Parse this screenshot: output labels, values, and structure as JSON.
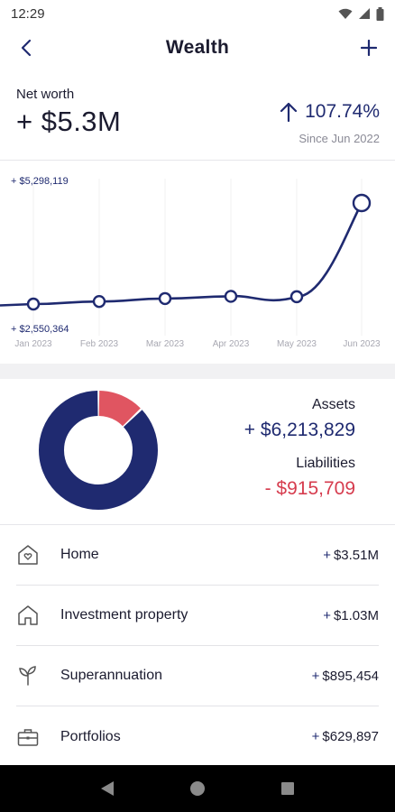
{
  "status_bar": {
    "time": "12:29"
  },
  "header": {
    "title": "Wealth",
    "back_icon": "chevron-left-icon",
    "add_icon": "plus-icon"
  },
  "summary": {
    "net_worth_label": "Net worth",
    "net_worth_value": "+ $5.3M",
    "change_percent": "107.74%",
    "change_direction": "up",
    "since_label": "Since Jun 2022"
  },
  "chart_data": {
    "type": "line",
    "x": [
      "Jan 2023",
      "Feb 2023",
      "Mar 2023",
      "Apr 2023",
      "May 2023",
      "Jun 2023"
    ],
    "series": [
      {
        "values": [
          2550364,
          2620000,
          2700000,
          2760000,
          2750000,
          5298119
        ]
      }
    ],
    "max_label": "+ $5,298,119",
    "min_label": "+ $2,550,364",
    "ylim": [
      2550364,
      5298119
    ],
    "grid": "vertical",
    "line_color": "#1f2a70"
  },
  "breakdown": {
    "assets_label": "Assets",
    "assets_value": "+ $6,213,829",
    "liabilities_label": "Liabilities",
    "liabilities_value": "-  $915,709",
    "assets_fraction": 0.8716,
    "liabilities_fraction": 0.1284,
    "assets_color": "#1f2a70",
    "liabilities_color": "#e05561"
  },
  "items": [
    {
      "icon": "home-heart-icon",
      "label": "Home",
      "sign": "+",
      "value": "$3.51M"
    },
    {
      "icon": "house-icon",
      "label": "Investment property",
      "sign": "+",
      "value": "$1.03M"
    },
    {
      "icon": "sprout-icon",
      "label": "Superannuation",
      "sign": "+",
      "value": "$895,454"
    },
    {
      "icon": "briefcase-icon",
      "label": "Portfolios",
      "sign": "+",
      "value": "$629,897"
    }
  ]
}
